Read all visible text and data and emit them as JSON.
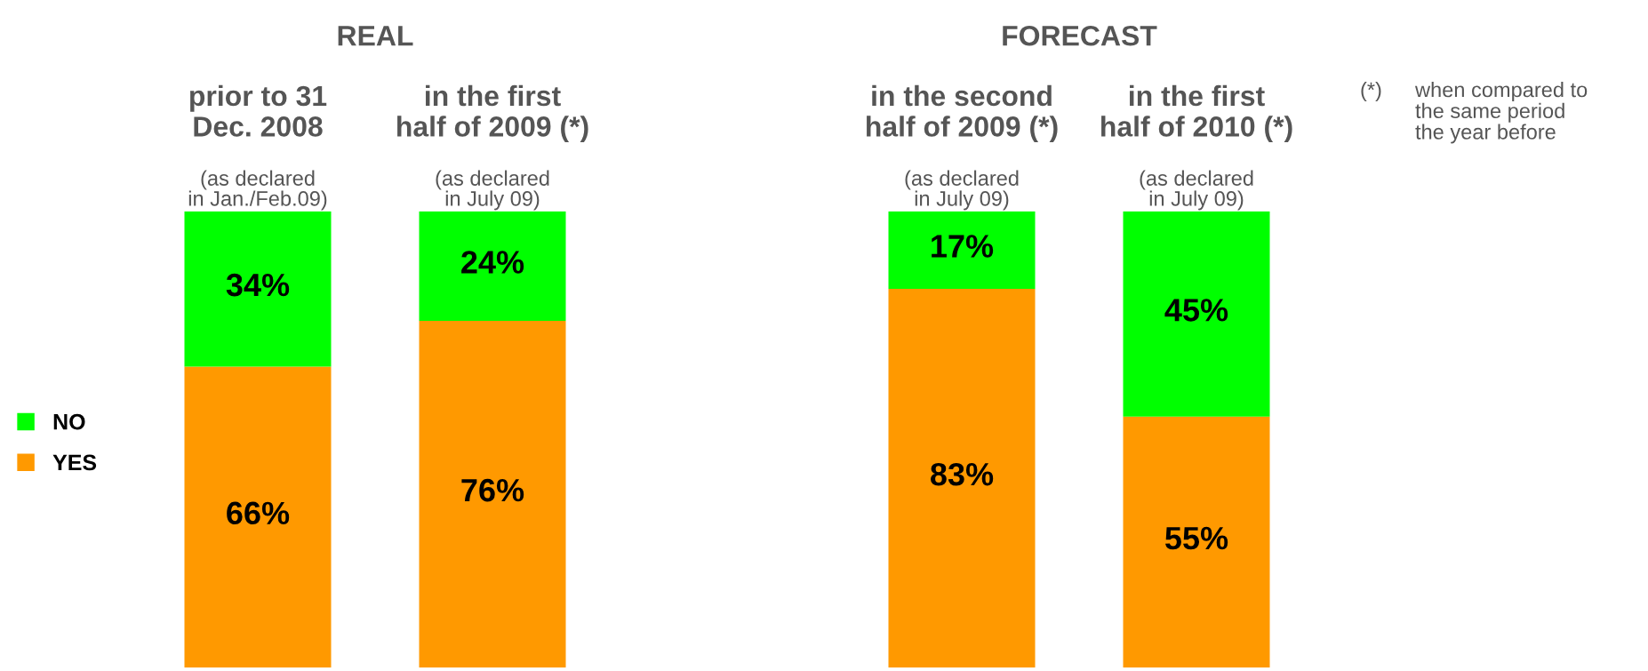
{
  "chart_data": {
    "type": "bar",
    "stacked": true,
    "legend": "left",
    "grid": false,
    "categories": [
      "prior to 31\nDec. 2008",
      "in the first\nhalf of 2009 (*)",
      null,
      "in the second\nhalf of 2009 (*)",
      "in the first\nhalf of 2010 (*)"
    ],
    "series": [
      {
        "name": "YES",
        "color": "#ff9900",
        "values": [
          66,
          76,
          null,
          83,
          55
        ],
        "value_labels": [
          "66%",
          "76%",
          null,
          "83%",
          "55%"
        ]
      },
      {
        "name": "NO",
        "color": "#00ff00",
        "values": [
          34,
          24,
          null,
          17,
          45
        ],
        "value_labels": [
          "34%",
          "24%",
          null,
          "17%",
          "45%"
        ]
      }
    ],
    "annotations": [
      "REAL",
      "FORECAST",
      "(as declared\nin Jan./Feb.09)",
      "(as declared\nin July 09)",
      null,
      "(as declared\nin July 09)",
      "(as declared\nin July 09)",
      "(*)",
      "when compared to\nthe same period\nthe year before"
    ]
  }
}
